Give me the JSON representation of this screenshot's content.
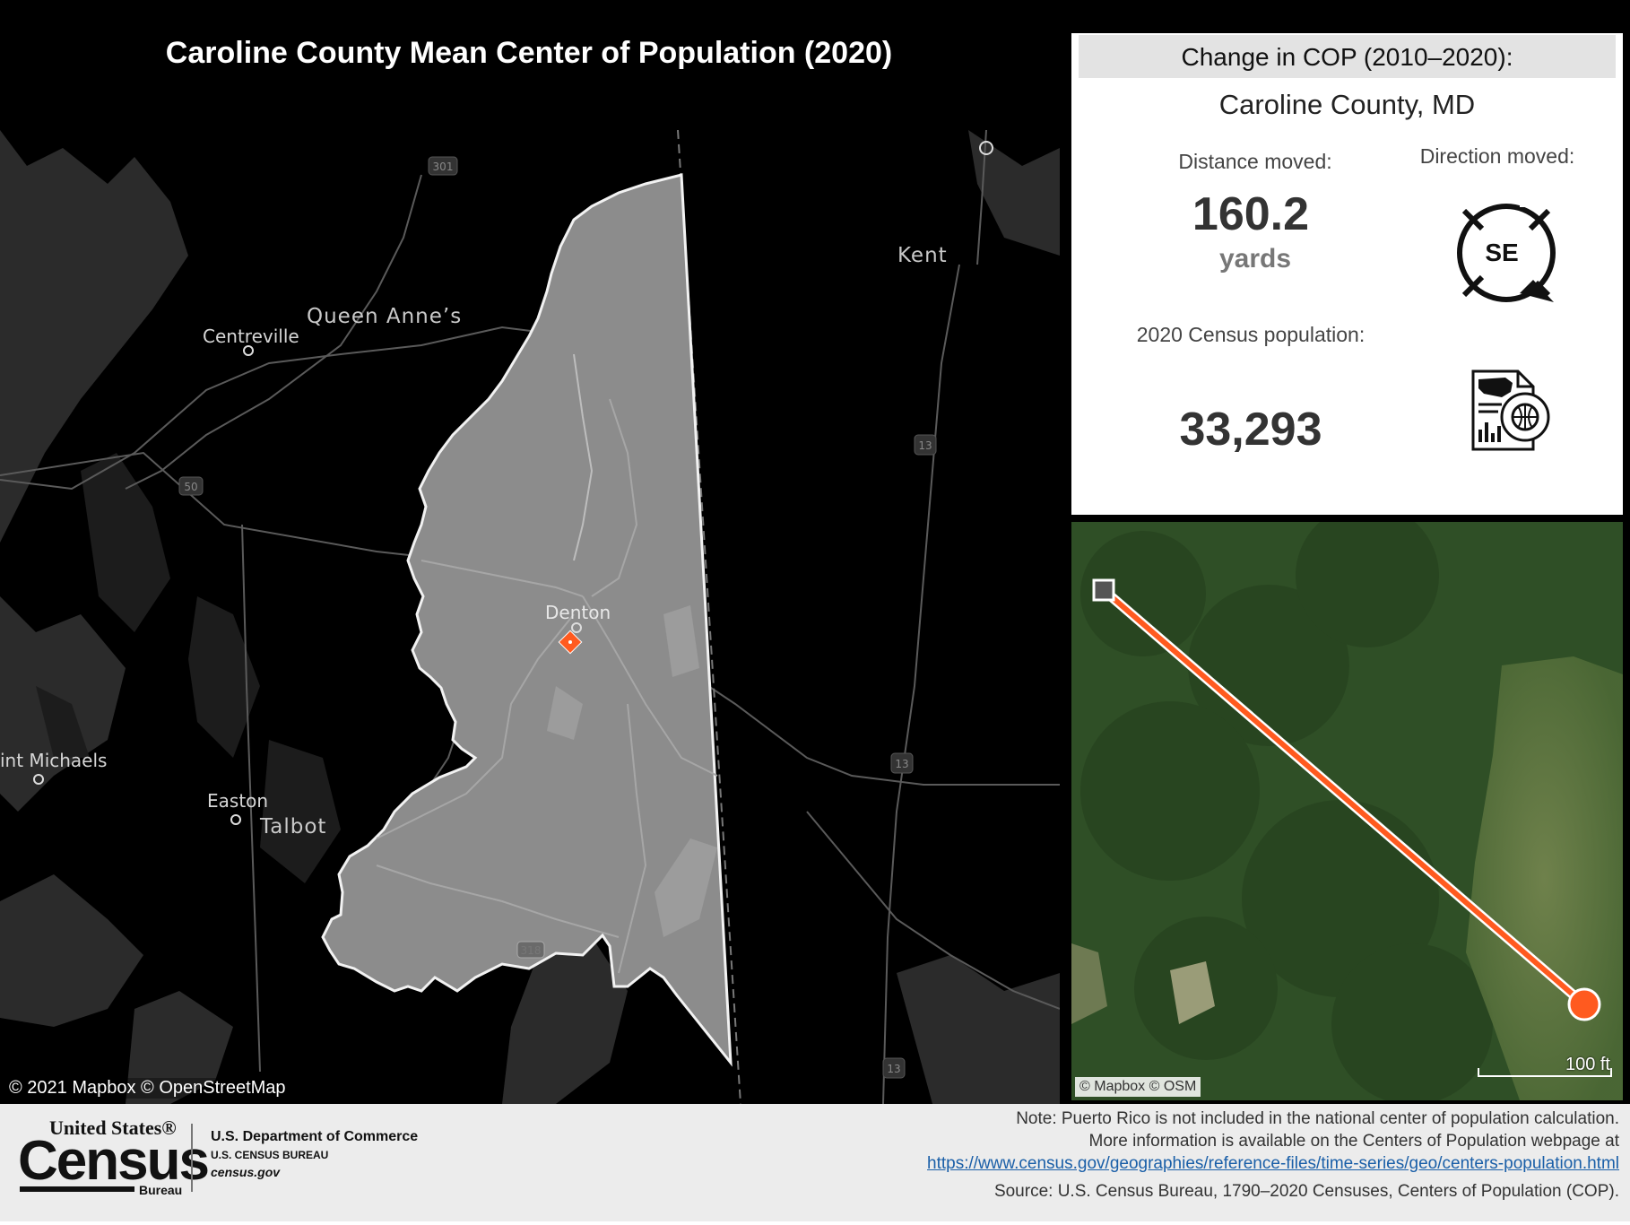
{
  "title": "Caroline County Mean Center of Population (2020)",
  "map": {
    "labels": {
      "queen_annes": "Queen Anne’s",
      "centreville": "Centreville",
      "kent": "Kent",
      "denton": "Denton",
      "st_michaels": "int Michaels",
      "easton": "Easton",
      "talbot": "Talbot"
    },
    "shields": [
      "301",
      "50",
      "13",
      "13",
      "13",
      "318"
    ],
    "attribution": "© 2021 Mapbox © OpenStreetMap",
    "center_marker_color": "#ff5a1f",
    "county_fill_color": "#8a8a8a"
  },
  "panel": {
    "header": "Change in COP (2010–2020):",
    "county": "Caroline County, MD",
    "distance_label": "Distance moved:",
    "direction_label": "Direction moved:",
    "distance_value": "160.2",
    "distance_unit": "yards",
    "direction_value": "SE",
    "population_label": "2020 Census population:",
    "population_value": "33,293"
  },
  "inset": {
    "attribution": "© Mapbox © OSM",
    "scale_label": "100 ft",
    "line_color": "#ff5a1f"
  },
  "footer": {
    "logo_top": "United States®",
    "logo_main": "Census",
    "logo_bottom": "Bureau",
    "dept": "U.S. Department of Commerce",
    "bureau": "U.S. CENSUS BUREAU",
    "site": "census.gov",
    "note1": "Note: Puerto Rico is not included in the national center of population calculation.",
    "note2": "More information is available on the Centers of Population webpage at",
    "link": "https://www.census.gov/geographies/reference-files/time-series/geo/centers-population.html",
    "source": "Source: U.S. Census Bureau, 1790–2020 Censuses, Centers of Population (COP)."
  }
}
